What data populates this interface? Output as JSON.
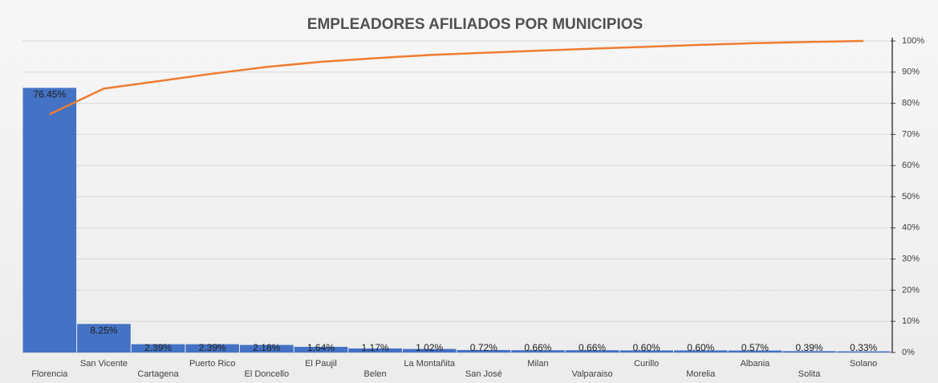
{
  "chart_data": {
    "type": "pareto",
    "title": "EMPLEADORES AFILIADOS POR MUNICIPIOS",
    "categories": [
      "Florencia",
      "San Vicente",
      "Cartagena",
      "Puerto Rico",
      "El Doncello",
      "El Paujil",
      "Belen",
      "La Montañita",
      "San José",
      "Milan",
      "Valparaiso",
      "Curillo",
      "Morelia",
      "Albania",
      "Solita",
      "Solano"
    ],
    "series": [
      {
        "color": "#4472c4",
        "values": [
          76.45,
          8.25,
          2.39,
          2.39,
          2.18,
          1.64,
          1.17,
          1.02,
          0.72,
          0.66,
          0.66,
          0.6,
          0.6,
          0.57,
          0.39,
          0.33
        ],
        "value_labels": [
          "76.45%",
          "8.25%",
          "2.39%",
          "2.39%",
          "2.18%",
          "1.64%",
          "1.17%",
          "1.02%",
          "0.72%",
          "0.66%",
          "0.66%",
          "0.60%",
          "0.60%",
          "0.57%",
          "0.39%",
          "0.33%"
        ]
      },
      {
        "color": "#ed7d31",
        "axis": "y2",
        "values": [
          76.45,
          84.7,
          87.09,
          89.48,
          91.66,
          93.3,
          94.47,
          95.49,
          96.21,
          96.87,
          97.53,
          98.13,
          98.73,
          99.3,
          99.69,
          100
        ]
      }
    ],
    "ylim": [
      0,
      90
    ],
    "y2lim": [
      0,
      100
    ],
    "y2ticks": [
      {
        "value": 0,
        "label": "0%"
      },
      {
        "value": 10,
        "label": "10%"
      },
      {
        "value": 20,
        "label": "20%"
      },
      {
        "value": 30,
        "label": "30%"
      },
      {
        "value": 40,
        "label": "40%"
      },
      {
        "value": 50,
        "label": "50%"
      },
      {
        "value": 60,
        "label": "60%"
      },
      {
        "value": 70,
        "label": "70%"
      },
      {
        "value": 80,
        "label": "80%"
      },
      {
        "value": 90,
        "label": "90%"
      },
      {
        "value": 100,
        "label": "100%"
      }
    ],
    "grid": true
  }
}
